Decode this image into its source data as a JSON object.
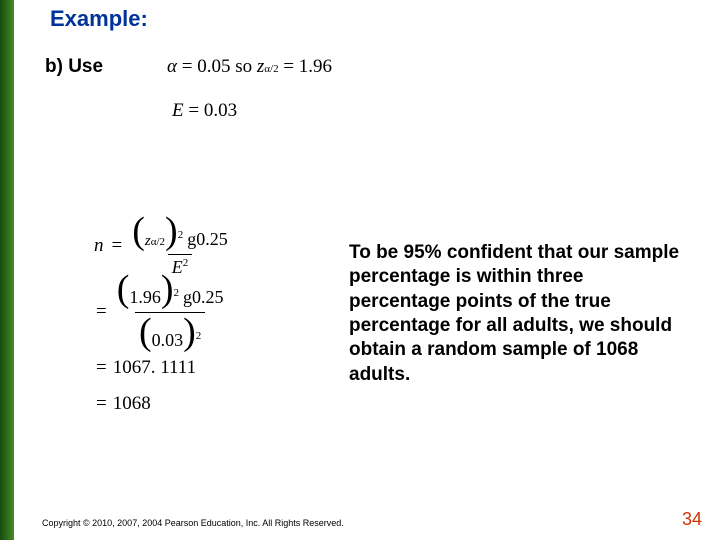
{
  "title": "Example:",
  "partLabel": "b) Use",
  "line1": {
    "alpha": "α",
    "eq1": " = 0.05",
    "so": "  so  ",
    "z": "z",
    "sub": "α/2",
    "eq2": " = 1.96"
  },
  "line2": {
    "E": "E",
    "eq": " = 0.03"
  },
  "mainMath": {
    "n": "n",
    "frac1": {
      "numLeft": "(",
      "numZ": "z",
      "numSub": "α/2",
      "numRight": ")",
      "numSup": "2",
      "numTail": "g0.25",
      "denE": "E",
      "denSup": "2"
    },
    "frac2": {
      "numLeft": "(",
      "numVal": "1.96",
      "numRight": ")",
      "numSup": "2",
      "numTail": "g0.25",
      "denLeft": "(",
      "denVal": "0.03",
      "denRight": ")",
      "denSup": "2"
    },
    "line3": "1067. 1111",
    "line4": "1068"
  },
  "body": "To be 95% confident that our sample percentage is within three percentage points of the true percentage for all adults, we should obtain a random sample of 1068 adults.",
  "copyright": "Copyright © 2010, 2007, 2004 Pearson Education, Inc. All Rights Reserved.",
  "pageNum": "34",
  "colors": {
    "title": "#003399",
    "pageNum": "#cc3300",
    "background": "#ffffff"
  }
}
